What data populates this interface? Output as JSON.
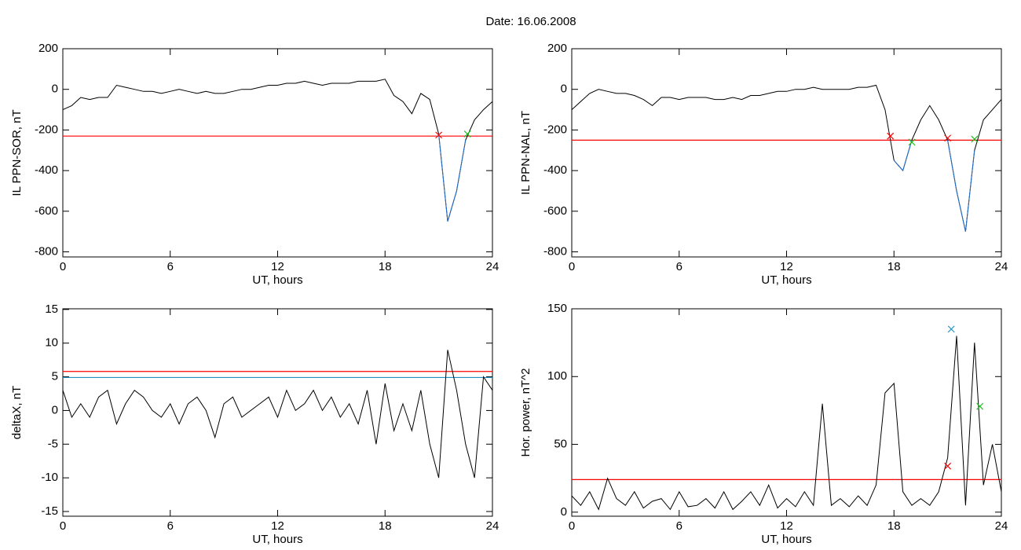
{
  "title": "Date:  16.06.2008",
  "chart_data": [
    {
      "type": "line",
      "xlabel": "UT, hours",
      "ylabel": "IL PPN-SOR, nT",
      "xlim": [
        0,
        24
      ],
      "xticks": [
        0,
        6,
        12,
        18,
        24
      ],
      "ylim": [
        -825,
        200
      ],
      "yticks": [
        200,
        0,
        -200,
        -400,
        -600,
        -800
      ],
      "x": [
        0,
        0.5,
        1,
        1.5,
        2,
        2.5,
        3,
        3.5,
        4,
        4.5,
        5,
        5.5,
        6,
        6.5,
        7,
        7.5,
        8,
        8.5,
        9,
        9.5,
        10,
        10.5,
        11,
        11.5,
        12,
        12.5,
        13,
        13.5,
        14,
        14.5,
        15,
        15.5,
        16,
        16.5,
        17,
        17.5,
        18,
        18.5,
        19,
        19.5,
        20,
        20.5,
        21,
        21.5,
        22,
        22.5,
        23,
        23.5,
        24
      ],
      "series": [
        {
          "color": "#000000",
          "values": [
            -100,
            -80,
            -40,
            -50,
            -40,
            -40,
            20,
            10,
            0,
            -10,
            -10,
            -20,
            -10,
            0,
            -10,
            -20,
            -10,
            -20,
            -20,
            -10,
            0,
            0,
            10,
            20,
            20,
            30,
            30,
            40,
            30,
            20,
            30,
            30,
            30,
            40,
            40,
            40,
            50,
            -30,
            -60,
            -120,
            -20,
            -50,
            -220,
            -650,
            -500,
            -250,
            -150,
            -100,
            -60
          ]
        },
        {
          "color": "#1f6fd0",
          "values": [
            null,
            null,
            null,
            null,
            null,
            null,
            null,
            null,
            null,
            null,
            null,
            null,
            null,
            null,
            null,
            null,
            null,
            null,
            null,
            null,
            null,
            null,
            null,
            null,
            null,
            null,
            null,
            null,
            null,
            null,
            null,
            null,
            null,
            null,
            null,
            null,
            null,
            null,
            null,
            null,
            null,
            null,
            -220,
            -650,
            -500,
            -250,
            null,
            null,
            null
          ]
        }
      ],
      "hlines": [
        {
          "value": -230,
          "color": "#ff0000"
        }
      ],
      "markers": [
        {
          "x": 21,
          "y": -225,
          "color": "#ff0000"
        },
        {
          "x": 22.6,
          "y": -220,
          "color": "#20c020"
        }
      ]
    },
    {
      "type": "line",
      "xlabel": "UT, hours",
      "ylabel": "IL PPN-NAL, nT",
      "xlim": [
        0,
        24
      ],
      "xticks": [
        0,
        6,
        12,
        18,
        24
      ],
      "ylim": [
        -825,
        200
      ],
      "yticks": [
        200,
        0,
        -200,
        -400,
        -600,
        -800
      ],
      "x": [
        0,
        0.5,
        1,
        1.5,
        2,
        2.5,
        3,
        3.5,
        4,
        4.5,
        5,
        5.5,
        6,
        6.5,
        7,
        7.5,
        8,
        8.5,
        9,
        9.5,
        10,
        10.5,
        11,
        11.5,
        12,
        12.5,
        13,
        13.5,
        14,
        14.5,
        15,
        15.5,
        16,
        16.5,
        17,
        17.5,
        18,
        18.5,
        19,
        19.5,
        20,
        20.5,
        21,
        21.5,
        22,
        22.5,
        23,
        23.5,
        24
      ],
      "series": [
        {
          "color": "#000000",
          "values": [
            -100,
            -60,
            -20,
            0,
            -10,
            -20,
            -20,
            -30,
            -50,
            -80,
            -40,
            -40,
            -50,
            -40,
            -40,
            -40,
            -50,
            -50,
            -40,
            -50,
            -30,
            -30,
            -20,
            -10,
            -10,
            0,
            0,
            10,
            0,
            0,
            0,
            0,
            10,
            10,
            20,
            -100,
            -350,
            -400,
            -250,
            -150,
            -80,
            -150,
            -250,
            -500,
            -700,
            -300,
            -150,
            -100,
            -50
          ]
        },
        {
          "color": "#1f6fd0",
          "values": [
            null,
            null,
            null,
            null,
            null,
            null,
            null,
            null,
            null,
            null,
            null,
            null,
            null,
            null,
            null,
            null,
            null,
            null,
            null,
            null,
            null,
            null,
            null,
            null,
            null,
            null,
            null,
            null,
            null,
            null,
            null,
            null,
            null,
            null,
            null,
            null,
            -350,
            -400,
            -250,
            null,
            null,
            null,
            -250,
            -500,
            -700,
            -300,
            null,
            null,
            null
          ]
        }
      ],
      "hlines": [
        {
          "value": -250,
          "color": "#ff0000"
        }
      ],
      "markers": [
        {
          "x": 17.8,
          "y": -230,
          "color": "#ff0000"
        },
        {
          "x": 19,
          "y": -260,
          "color": "#20c020"
        },
        {
          "x": 21,
          "y": -240,
          "color": "#ff0000"
        },
        {
          "x": 22.5,
          "y": -245,
          "color": "#20c020"
        }
      ]
    },
    {
      "type": "line",
      "xlabel": "UT, hours",
      "ylabel": "deltaX, nT",
      "xlim": [
        0,
        24
      ],
      "xticks": [
        0,
        6,
        12,
        18,
        24
      ],
      "ylim": [
        -15.7,
        15.1
      ],
      "yticks": [
        15,
        10,
        5,
        0,
        -5,
        -10,
        -15
      ],
      "x": [
        0,
        0.5,
        1,
        1.5,
        2,
        2.5,
        3,
        3.5,
        4,
        4.5,
        5,
        5.5,
        6,
        6.5,
        7,
        7.5,
        8,
        8.5,
        9,
        9.5,
        10,
        10.5,
        11,
        11.5,
        12,
        12.5,
        13,
        13.5,
        14,
        14.5,
        15,
        15.5,
        16,
        16.5,
        17,
        17.5,
        18,
        18.5,
        19,
        19.5,
        20,
        20.5,
        21,
        21.5,
        22,
        22.5,
        23,
        23.5,
        24
      ],
      "series": [
        {
          "color": "#000000",
          "values": [
            3,
            -1,
            1,
            -1,
            2,
            3,
            -2,
            1,
            3,
            2,
            0,
            -1,
            1,
            -2,
            1,
            2,
            0,
            -4,
            1,
            2,
            -1,
            0,
            1,
            2,
            -1,
            3,
            0,
            1,
            3,
            0,
            2,
            -1,
            1,
            -2,
            3,
            -5,
            4,
            -3,
            1,
            -3,
            3,
            -5,
            -10,
            9,
            3,
            -5,
            -10,
            5,
            3
          ]
        }
      ],
      "hlines": [
        {
          "value": 5.8,
          "color": "#ff0000"
        },
        {
          "value": 4.9,
          "color": "#2090c0"
        }
      ],
      "markers": []
    },
    {
      "type": "line",
      "xlabel": "UT, hours",
      "ylabel": "Hor. power, nT^2",
      "xlim": [
        0,
        24
      ],
      "xticks": [
        0,
        6,
        12,
        18,
        24
      ],
      "ylim": [
        -3,
        150
      ],
      "yticks": [
        150,
        100,
        50,
        0
      ],
      "x": [
        0,
        0.5,
        1,
        1.5,
        2,
        2.5,
        3,
        3.5,
        4,
        4.5,
        5,
        5.5,
        6,
        6.5,
        7,
        7.5,
        8,
        8.5,
        9,
        9.5,
        10,
        10.5,
        11,
        11.5,
        12,
        12.5,
        13,
        13.5,
        14,
        14.5,
        15,
        15.5,
        16,
        16.5,
        17,
        17.5,
        18,
        18.5,
        19,
        19.5,
        20,
        20.5,
        21,
        21.5,
        22,
        22.5,
        23,
        23.5,
        24
      ],
      "series": [
        {
          "color": "#000000",
          "values": [
            12,
            5,
            15,
            2,
            25,
            10,
            5,
            15,
            3,
            8,
            10,
            2,
            15,
            4,
            5,
            10,
            3,
            15,
            2,
            8,
            15,
            5,
            20,
            3,
            10,
            4,
            15,
            5,
            80,
            5,
            10,
            4,
            12,
            5,
            20,
            88,
            95,
            15,
            5,
            10,
            5,
            15,
            40,
            130,
            5,
            125,
            20,
            50,
            15
          ]
        }
      ],
      "hlines": [
        {
          "value": 24,
          "color": "#ff0000"
        }
      ],
      "markers": [
        {
          "x": 21,
          "y": 34,
          "color": "#ff0000"
        },
        {
          "x": 21.2,
          "y": 135,
          "color": "#2090c0"
        },
        {
          "x": 22.8,
          "y": 78,
          "color": "#20c020"
        }
      ]
    }
  ]
}
